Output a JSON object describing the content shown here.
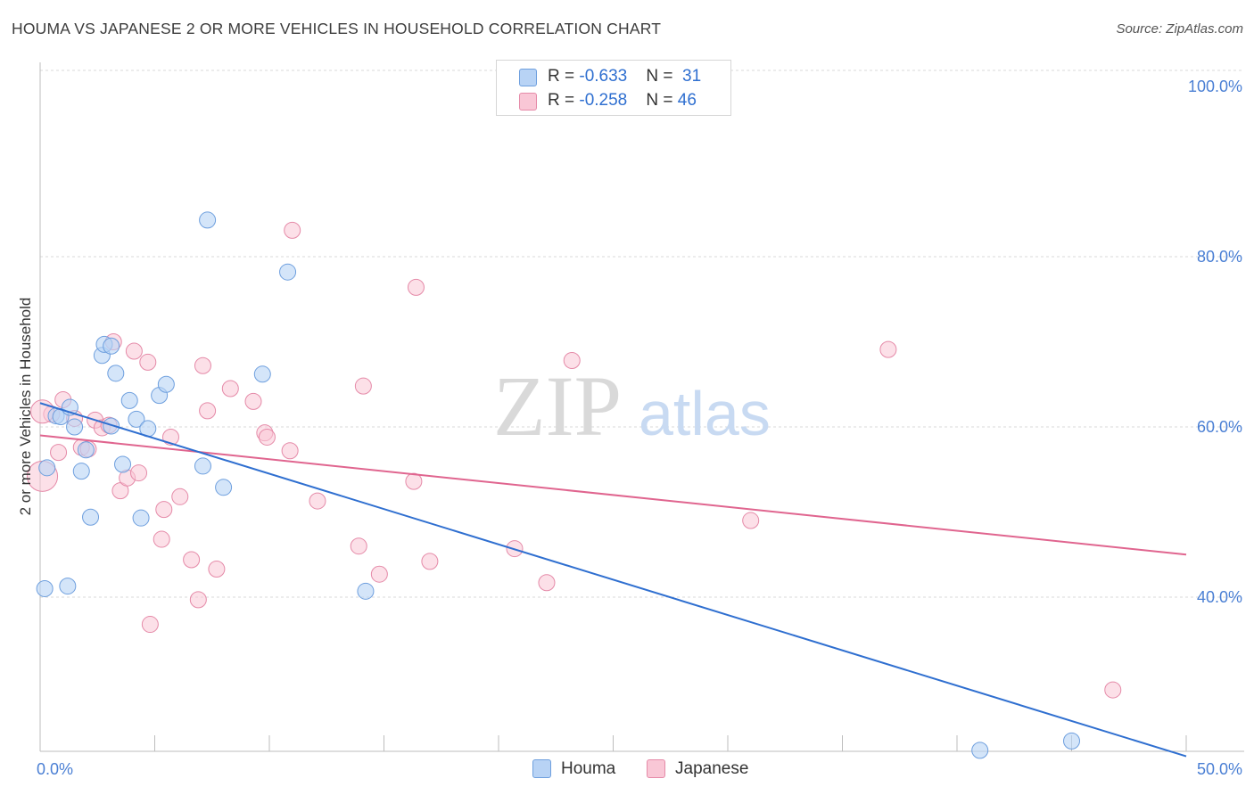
{
  "title": "HOUMA VS JAPANESE 2 OR MORE VEHICLES IN HOUSEHOLD CORRELATION CHART",
  "source": "Source: ZipAtlas.com",
  "watermark": {
    "zip": "ZIP",
    "atlas": "atlas"
  },
  "legend": {
    "rows": [
      {
        "r_label": "R = ",
        "r_value": "-0.633",
        "n_label": "N = ",
        "n_value": "31"
      },
      {
        "r_label": "R = ",
        "r_value": "-0.258",
        "n_label": "N = ",
        "n_value": "46"
      }
    ]
  },
  "bottom_legend": [
    "Houma",
    "Japanese"
  ],
  "colors": {
    "houma_fill": "#b8d3f5",
    "houma_stroke": "#6e9fde",
    "houma_line": "#2f6fd0",
    "japanese_fill": "#f9c7d6",
    "japanese_stroke": "#e58aa8",
    "japanese_line": "#e0658f",
    "tick_text": "#4a7fd4",
    "grid": "#d8d8d8"
  },
  "chart_data": {
    "type": "scatter",
    "title": "HOUMA VS JAPANESE 2 OR MORE VEHICLES IN HOUSEHOLD CORRELATION CHART",
    "xlabel": "",
    "ylabel": "2 or more Vehicles in Household",
    "xlim": [
      0,
      50
    ],
    "ylim": [
      20,
      102
    ],
    "x_tick_labels": [
      "0.0%",
      "50.0%"
    ],
    "y_ticks": [
      40,
      60,
      80,
      100
    ],
    "y_tick_labels": [
      "40.0%",
      "60.0%",
      "80.0%",
      "100.0%"
    ],
    "grid": true,
    "legend_position": "top-center",
    "series": [
      {
        "name": "Houma",
        "r": -0.633,
        "n": 31,
        "trend": {
          "x": [
            0,
            50
          ],
          "y": [
            62.8,
            21.3
          ]
        },
        "points": [
          [
            0.2,
            41.0
          ],
          [
            0.3,
            55.2
          ],
          [
            0.7,
            61.3
          ],
          [
            0.9,
            61.2
          ],
          [
            1.2,
            41.3
          ],
          [
            1.3,
            62.3
          ],
          [
            1.5,
            60.0
          ],
          [
            1.8,
            54.8
          ],
          [
            2.0,
            57.3
          ],
          [
            2.2,
            49.4
          ],
          [
            2.7,
            68.4
          ],
          [
            2.8,
            69.7
          ],
          [
            3.1,
            69.5
          ],
          [
            3.1,
            60.1
          ],
          [
            3.3,
            66.3
          ],
          [
            3.6,
            55.6
          ],
          [
            3.9,
            63.1
          ],
          [
            4.2,
            60.9
          ],
          [
            4.4,
            49.3
          ],
          [
            4.7,
            59.8
          ],
          [
            5.2,
            63.7
          ],
          [
            5.5,
            65.0
          ],
          [
            7.1,
            55.4
          ],
          [
            7.3,
            84.3
          ],
          [
            8.0,
            52.9
          ],
          [
            9.7,
            66.2
          ],
          [
            10.8,
            78.2
          ],
          [
            14.2,
            40.7
          ],
          [
            41.0,
            22.0
          ],
          [
            45.0,
            23.1
          ],
          [
            0.2,
            52.0
          ]
        ]
      },
      {
        "name": "Japanese",
        "r": -0.258,
        "n": 46,
        "trend": {
          "x": [
            0,
            50
          ],
          "y": [
            59.0,
            45.0
          ]
        },
        "points": [
          [
            0.1,
            54.2
          ],
          [
            0.5,
            61.5
          ],
          [
            0.8,
            57.0
          ],
          [
            1.0,
            63.2
          ],
          [
            1.5,
            61.0
          ],
          [
            1.8,
            57.6
          ],
          [
            2.1,
            57.4
          ],
          [
            2.4,
            60.8
          ],
          [
            2.7,
            59.9
          ],
          [
            3.0,
            60.2
          ],
          [
            3.2,
            70.0
          ],
          [
            3.5,
            52.5
          ],
          [
            3.8,
            54.0
          ],
          [
            4.1,
            68.9
          ],
          [
            4.3,
            54.6
          ],
          [
            4.7,
            67.6
          ],
          [
            4.8,
            36.8
          ],
          [
            5.3,
            46.8
          ],
          [
            5.4,
            50.3
          ],
          [
            5.7,
            58.8
          ],
          [
            6.1,
            51.8
          ],
          [
            6.6,
            44.4
          ],
          [
            6.9,
            39.7
          ],
          [
            7.1,
            67.2
          ],
          [
            7.3,
            61.9
          ],
          [
            7.7,
            43.3
          ],
          [
            8.3,
            64.5
          ],
          [
            9.3,
            63.0
          ],
          [
            9.8,
            59.3
          ],
          [
            9.9,
            58.8
          ],
          [
            10.9,
            57.2
          ],
          [
            11.0,
            83.1
          ],
          [
            12.1,
            51.3
          ],
          [
            13.9,
            46.0
          ],
          [
            14.1,
            64.8
          ],
          [
            14.8,
            42.7
          ],
          [
            16.3,
            53.6
          ],
          [
            16.4,
            76.4
          ],
          [
            17.0,
            44.2
          ],
          [
            20.7,
            45.7
          ],
          [
            22.1,
            41.7
          ],
          [
            23.2,
            67.8
          ],
          [
            31.0,
            49.0
          ],
          [
            37.0,
            69.1
          ],
          [
            46.8,
            29.1
          ],
          [
            0.1,
            61.8
          ]
        ]
      }
    ]
  }
}
